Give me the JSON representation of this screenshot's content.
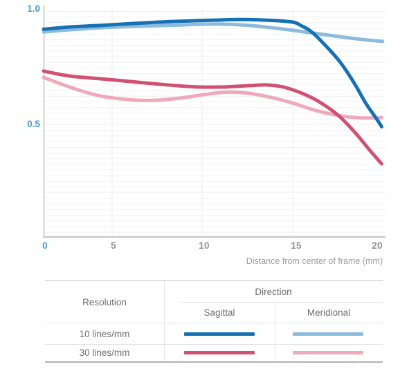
{
  "axis": {
    "y_tick_top": "1.0",
    "y_tick_mid": "0.5",
    "origin_label": "0",
    "x_tick_labels": [
      "5",
      "10",
      "15",
      "20"
    ],
    "xlabel": "Distance from center of frame (mm)"
  },
  "legend_table": {
    "resolution_header": "Resolution",
    "direction_header": "Direction",
    "columns": [
      "Sagittal",
      "Meridional"
    ],
    "rows": [
      "10 lines/mm",
      "30 lines/mm"
    ]
  },
  "colors": {
    "sagittal_10": "#1571b3",
    "meridional_10": "#8cbbde",
    "sagittal_30": "#d05172",
    "meridional_30": "#efa9ba",
    "tick_blue": "#4a9bd4",
    "tick_gray": "#919191",
    "grid_horizontal": "#f1f1f1",
    "grid_vertical": "#ebebeb",
    "y_axis_line": "#d3d3d3",
    "x_axis_line": "#c9c9c9",
    "table_outer_border": "#c2c2c2",
    "table_inner_border": "#e3e3e3",
    "table_text": "#6e6e6e"
  },
  "chart_data": {
    "type": "line",
    "title": "",
    "xlabel": "Distance from center of frame (mm)",
    "ylabel": "",
    "xlim": [
      0,
      20
    ],
    "ylim": [
      0,
      1
    ],
    "x_ticks": [
      0,
      5,
      10,
      15,
      20
    ],
    "y_ticks": [
      0.5,
      1.0
    ],
    "grid": "fine horizontal lines, vertical lines at x ticks",
    "legend_position": "table below chart",
    "series": [
      {
        "name": "10 lines/mm Meridional",
        "color_key": "meridional_10",
        "points": [
          [
            0,
            0.891
          ],
          [
            2,
            0.9
          ],
          [
            4.4,
            0.909
          ],
          [
            6.5,
            0.915
          ],
          [
            8.4,
            0.919
          ],
          [
            10.7,
            0.924
          ],
          [
            12.6,
            0.918
          ],
          [
            14.1,
            0.906
          ],
          [
            15.3,
            0.894
          ],
          [
            17.2,
            0.875
          ],
          [
            18.8,
            0.86
          ],
          [
            20.15,
            0.85
          ]
        ]
      },
      {
        "name": "30 lines/mm Meridional",
        "color_key": "meridional_30",
        "points": [
          [
            0,
            0.697
          ],
          [
            1.9,
            0.656
          ],
          [
            3.9,
            0.621
          ],
          [
            5.7,
            0.604
          ],
          [
            7.2,
            0.599
          ],
          [
            8.8,
            0.609
          ],
          [
            10.3,
            0.626
          ],
          [
            11.4,
            0.634
          ],
          [
            12.6,
            0.629
          ],
          [
            14.1,
            0.606
          ],
          [
            15.2,
            0.582
          ],
          [
            16.4,
            0.554
          ],
          [
            17.6,
            0.535
          ],
          [
            18.6,
            0.526
          ],
          [
            19.4,
            0.524
          ],
          [
            20.1,
            0.526
          ]
        ]
      },
      {
        "name": "30 lines/mm Sagittal",
        "color_key": "sagittal_30",
        "points": [
          [
            0,
            0.724
          ],
          [
            1.9,
            0.703
          ],
          [
            4.4,
            0.69
          ],
          [
            7.2,
            0.671
          ],
          [
            9.5,
            0.657
          ],
          [
            11.1,
            0.656
          ],
          [
            12.6,
            0.662
          ],
          [
            13.5,
            0.665
          ],
          [
            14.45,
            0.656
          ],
          [
            15.4,
            0.632
          ],
          [
            16.4,
            0.597
          ],
          [
            17.6,
            0.535
          ],
          [
            18.6,
            0.459
          ],
          [
            19.4,
            0.388
          ],
          [
            20.1,
            0.329
          ]
        ]
      },
      {
        "name": "10 lines/mm Sagittal",
        "color_key": "sagittal_10",
        "points": [
          [
            0,
            0.902
          ],
          [
            2,
            0.912
          ],
          [
            4.4,
            0.919
          ],
          [
            6.5,
            0.928
          ],
          [
            8.4,
            0.935
          ],
          [
            10.7,
            0.941
          ],
          [
            12.6,
            0.943
          ],
          [
            14.8,
            0.934
          ],
          [
            15.5,
            0.915
          ],
          [
            16.1,
            0.888
          ],
          [
            16.9,
            0.829
          ],
          [
            17.7,
            0.762
          ],
          [
            18.5,
            0.674
          ],
          [
            19.2,
            0.585
          ],
          [
            19.8,
            0.521
          ],
          [
            20.1,
            0.487
          ]
        ]
      }
    ]
  }
}
